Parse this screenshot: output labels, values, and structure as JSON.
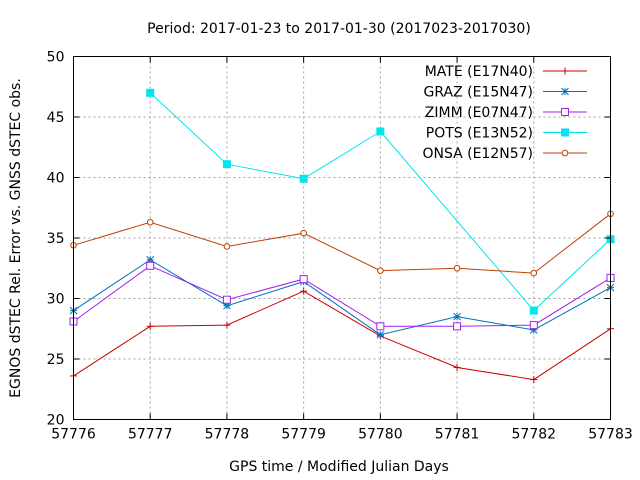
{
  "chart_data": {
    "type": "line",
    "title": "Period: 2017-01-23 to 2017-01-30 (2017023-2017030)",
    "xlabel": "GPS time / Modified Julian Days",
    "ylabel": "EGNOS dSTEC Rel. Error vs. GNSS dSTEC obs.",
    "xlim": [
      57776,
      57783
    ],
    "ylim": [
      20,
      50
    ],
    "xticks": [
      57776,
      57777,
      57778,
      57779,
      57780,
      57781,
      57782,
      57783
    ],
    "yticks": [
      20,
      25,
      30,
      35,
      40,
      45,
      50
    ],
    "grid": true,
    "legend_position": "top-right",
    "series": [
      {
        "name": "MATE (E17N40)",
        "color": "#cc0000",
        "marker": "plus",
        "x": [
          57776,
          57777,
          57778,
          57779,
          57780,
          57781,
          57782,
          57783
        ],
        "y": [
          23.6,
          27.7,
          27.8,
          30.6,
          26.9,
          24.3,
          23.3,
          27.5
        ]
      },
      {
        "name": "GRAZ (E15N47)",
        "color": "#0072bd",
        "marker": "star",
        "x": [
          57776,
          57777,
          57778,
          57779,
          57780,
          57781,
          57782,
          57783
        ],
        "y": [
          29.0,
          33.2,
          29.4,
          31.4,
          27.0,
          28.5,
          27.4,
          30.9
        ]
      },
      {
        "name": "ZIMM (E07N47)",
        "color": "#a020f0",
        "marker": "open-square",
        "x": [
          57776,
          57777,
          57778,
          57779,
          57780,
          57781,
          57782,
          57783
        ],
        "y": [
          28.1,
          32.7,
          29.9,
          31.6,
          27.7,
          27.7,
          27.8,
          31.7
        ]
      },
      {
        "name": "POTS (E13N52)",
        "color": "#00e5ee",
        "marker": "filled-square",
        "x": [
          57777,
          57778,
          57779,
          57780,
          57782,
          57783
        ],
        "y": [
          47.0,
          41.1,
          39.9,
          43.8,
          29.0,
          34.9
        ]
      },
      {
        "name": "ONSA (E12N57)",
        "color": "#c04000",
        "marker": "open-circle",
        "x": [
          57776,
          57777,
          57778,
          57779,
          57780,
          57781,
          57782,
          57783
        ],
        "y": [
          34.4,
          36.3,
          34.3,
          35.4,
          32.3,
          32.5,
          32.1,
          37.0
        ]
      }
    ]
  }
}
